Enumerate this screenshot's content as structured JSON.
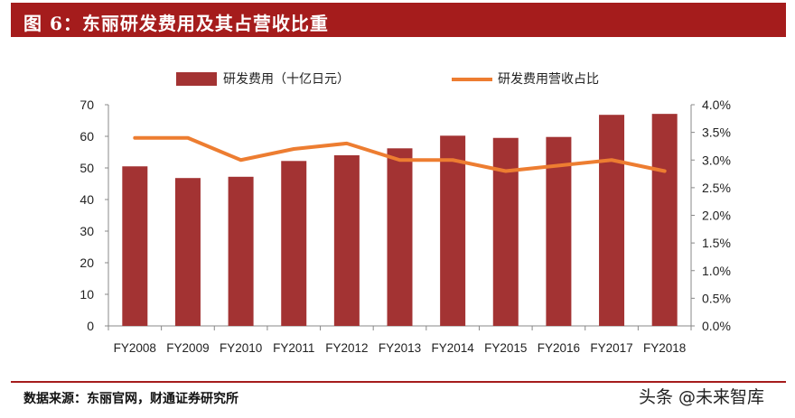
{
  "header": {
    "title": "图 6：东丽研发费用及其占营收比重"
  },
  "source": "数据来源：东丽官网，财通证券研究所",
  "watermark": {
    "text": "头条 @未来智库"
  },
  "colors": {
    "bar": "#a33333",
    "line": "#ed7d31",
    "header_bg": "#a51c1c"
  },
  "chart_data": {
    "type": "bar",
    "categories": [
      "FY2008",
      "FY2009",
      "FY2010",
      "FY2011",
      "FY2012",
      "FY2013",
      "FY2014",
      "FY2015",
      "FY2016",
      "FY2017",
      "FY2018"
    ],
    "series": [
      {
        "name": "研发费用（十亿日元）",
        "type": "bar",
        "axis": "left",
        "values": [
          50.5,
          46.8,
          47.2,
          52.2,
          54.0,
          56.2,
          60.2,
          59.5,
          59.8,
          66.8,
          67.1
        ]
      },
      {
        "name": "研发费用营收占比",
        "type": "line",
        "axis": "right",
        "values": [
          3.4,
          3.4,
          3.0,
          3.2,
          3.3,
          3.0,
          3.0,
          2.8,
          2.9,
          3.0,
          2.8
        ]
      }
    ],
    "y_left": {
      "min": 0,
      "max": 70,
      "step": 10,
      "tick_labels": [
        "0",
        "10",
        "20",
        "30",
        "40",
        "50",
        "60",
        "70"
      ]
    },
    "y_right": {
      "min": 0,
      "max": 4,
      "step": 0.5,
      "tick_labels": [
        "0.0%",
        "0.5%",
        "1.0%",
        "1.5%",
        "2.0%",
        "2.5%",
        "3.0%",
        "3.5%",
        "4.0%"
      ]
    },
    "legend": {
      "position": "top"
    },
    "grid": false
  }
}
